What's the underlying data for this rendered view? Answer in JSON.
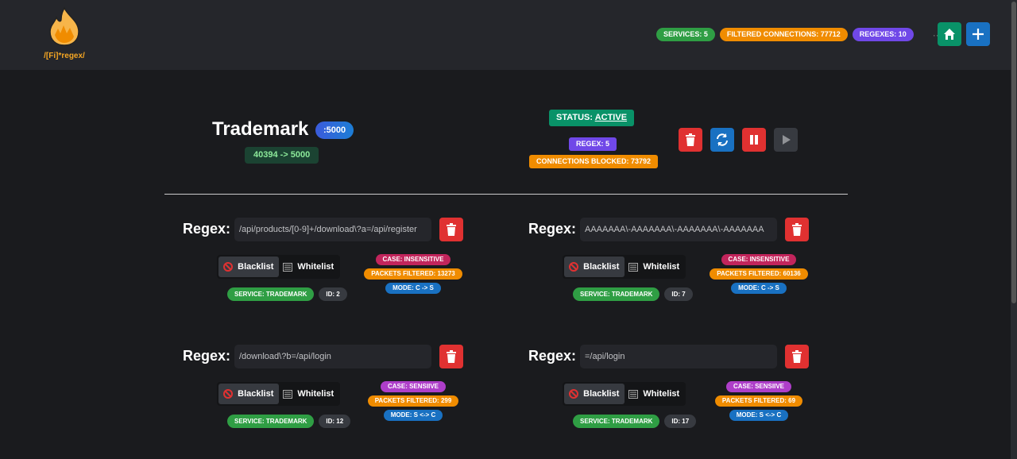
{
  "header": {
    "logo_text": "/[Fi]*regex/",
    "badges": [
      {
        "label": "SERVICES: 5",
        "color": "#2f9e44"
      },
      {
        "label": "FILTERED CONNECTIONS: 77712",
        "color": "#f08c00"
      },
      {
        "label": "REGEXES: 10",
        "color": "#7048e8"
      }
    ],
    "more": "···",
    "home_color": "#099268",
    "add_color": "#1971c2"
  },
  "service": {
    "name": "Trademark",
    "port": ":5000",
    "mapping": "40394 -> 5000",
    "status_prefix": "STATUS: ",
    "status": "ACTIVE",
    "regex": "REGEX: 5",
    "blocked": "CONNECTIONS BLOCKED: 73792"
  },
  "regex_label": "Regex:",
  "blacklist": "Blacklist",
  "whitelist": "Whitelist",
  "regexes": [
    {
      "value": "/api/products/[0-9]+/download\\?a=/api/register",
      "case": "CASE: INSENSITIVE",
      "case_color": "#c2255c",
      "packets": "PACKETS FILTERED: 13273",
      "mode": "MODE: C -> S",
      "service": "SERVICE: TRADEMARK",
      "id": "ID: 2"
    },
    {
      "value": "AAAAAAA\\-AAAAAAA\\-AAAAAAA\\-AAAAAAA",
      "case": "CASE: INSENSITIVE",
      "case_color": "#c2255c",
      "packets": "PACKETS FILTERED: 60136",
      "mode": "MODE: C -> S",
      "service": "SERVICE: TRADEMARK",
      "id": "ID: 7"
    },
    {
      "value": "/download\\?b=/api/login",
      "case": "CASE: SENSIIVE",
      "case_color": "#ae3ec9",
      "packets": "PACKETS FILTERED: 299",
      "mode": "MODE: S <-> C",
      "service": "SERVICE: TRADEMARK",
      "id": "ID: 12"
    },
    {
      "value": "=/api/login",
      "case": "CASE: SENSIIVE",
      "case_color": "#ae3ec9",
      "packets": "PACKETS FILTERED: 69",
      "mode": "MODE: S <-> C",
      "service": "SERVICE: TRADEMARK",
      "id": "ID: 17"
    }
  ]
}
